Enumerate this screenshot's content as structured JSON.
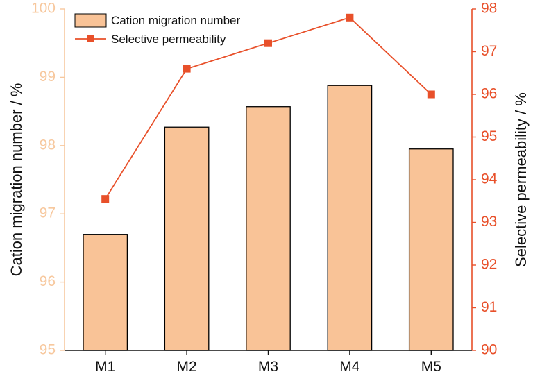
{
  "chart_data": {
    "type": "bar+line",
    "categories": [
      "M1",
      "M2",
      "M3",
      "M4",
      "M5"
    ],
    "series": [
      {
        "name": "Cation migration number",
        "type": "bar",
        "axis": "left",
        "values": [
          96.7,
          98.27,
          98.57,
          98.88,
          97.95
        ],
        "fill": "#F9C397",
        "stroke": "#000000"
      },
      {
        "name": "Selective permeability",
        "type": "line",
        "axis": "right",
        "marker": "square",
        "values": [
          93.55,
          96.6,
          97.2,
          97.8,
          96.0
        ],
        "color": "#E8502A"
      }
    ],
    "ylabel": "Cation migration number / %",
    "y2label": "Selective permeability / %",
    "ylim": [
      95,
      100
    ],
    "y2lim": [
      90,
      98
    ],
    "yticks": [
      95,
      96,
      97,
      98,
      99,
      100
    ],
    "y2ticks": [
      90,
      91,
      92,
      93,
      94,
      95,
      96,
      97,
      98
    ],
    "left_axis_color": "#F7C89E",
    "right_axis_color": "#E8502A",
    "legend_position": "top-left",
    "grid": false
  }
}
